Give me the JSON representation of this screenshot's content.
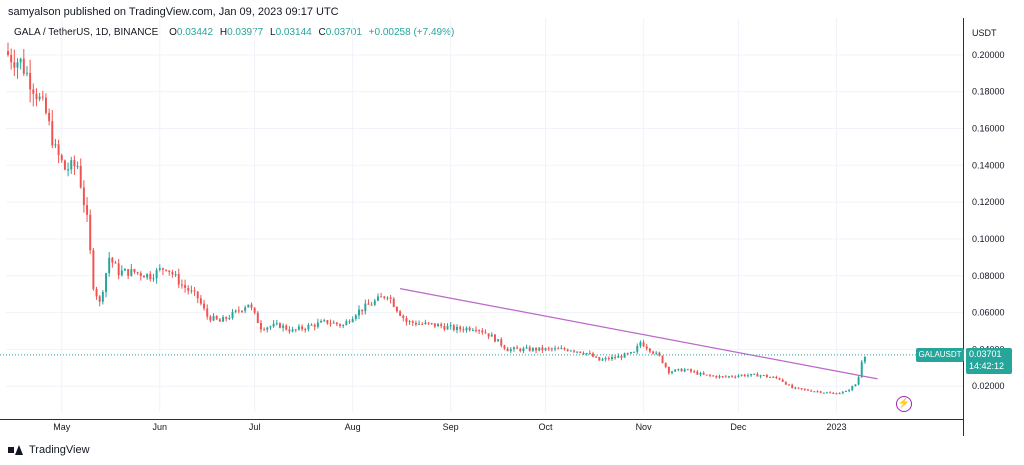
{
  "header": {
    "published": "samyalson published on TradingView.com, Jan 09, 2023 09:17 UTC"
  },
  "legend": {
    "pair": "GALA / TetherUS, 1D, BINANCE",
    "open_label": "O",
    "open": "0.03442",
    "high_label": "H",
    "high": "0.03977",
    "low_label": "L",
    "low": "0.03144",
    "close_label": "C",
    "close": "0.03701",
    "change": "+0.00258 (+7.49%)"
  },
  "badge": {
    "symbol": "GALAUSDT",
    "price": "0.03701",
    "countdown": "14:42:12"
  },
  "footer": {
    "brand": "TradingView"
  },
  "flash_icon": "lightning-icon",
  "colors": {
    "up": "#26a69a",
    "down": "#ef5350",
    "trendline": "#ba68c8",
    "grid": "#f0f3fa",
    "axis_text": "#131722"
  },
  "chart_data": {
    "type": "candlestick",
    "title": "GALA / TetherUS, 1D, BINANCE",
    "ylabel": "USDT",
    "ylim": [
      0.006,
      0.22
    ],
    "y_ticks": [
      0.02,
      0.04,
      0.06,
      0.08,
      0.1,
      0.12,
      0.14,
      0.16,
      0.18,
      0.2
    ],
    "y_tick_labels": [
      "0.02000",
      "0.04000",
      "0.06000",
      "0.08000",
      "0.10000",
      "0.12000",
      "0.14000",
      "0.16000",
      "0.18000",
      "0.20000"
    ],
    "x_range_days": [
      0,
      292
    ],
    "x_ticks": [
      {
        "label": "May",
        "day": 17
      },
      {
        "label": "Jun",
        "day": 48
      },
      {
        "label": "Jul",
        "day": 78
      },
      {
        "label": "Aug",
        "day": 109
      },
      {
        "label": "Sep",
        "day": 140
      },
      {
        "label": "Oct",
        "day": 170
      },
      {
        "label": "Nov",
        "day": 201
      },
      {
        "label": "Dec",
        "day": 231
      },
      {
        "label": "2023",
        "day": 262
      }
    ],
    "close_anchors": [
      [
        0,
        0.2
      ],
      [
        4,
        0.196
      ],
      [
        8,
        0.183
      ],
      [
        12,
        0.168
      ],
      [
        15,
        0.148
      ],
      [
        18,
        0.138
      ],
      [
        22,
        0.14
      ],
      [
        25,
        0.11
      ],
      [
        27,
        0.075
      ],
      [
        29,
        0.065
      ],
      [
        32,
        0.09
      ],
      [
        35,
        0.082
      ],
      [
        40,
        0.082
      ],
      [
        45,
        0.08
      ],
      [
        50,
        0.085
      ],
      [
        55,
        0.075
      ],
      [
        60,
        0.068
      ],
      [
        63,
        0.058
      ],
      [
        67,
        0.055
      ],
      [
        72,
        0.06
      ],
      [
        76,
        0.065
      ],
      [
        80,
        0.052
      ],
      [
        86,
        0.053
      ],
      [
        90,
        0.05
      ],
      [
        96,
        0.053
      ],
      [
        101,
        0.055
      ],
      [
        106,
        0.053
      ],
      [
        110,
        0.06
      ],
      [
        115,
        0.065
      ],
      [
        120,
        0.07
      ],
      [
        123,
        0.062
      ],
      [
        126,
        0.055
      ],
      [
        130,
        0.054
      ],
      [
        136,
        0.053
      ],
      [
        142,
        0.051
      ],
      [
        148,
        0.052
      ],
      [
        153,
        0.047
      ],
      [
        158,
        0.04
      ],
      [
        165,
        0.04
      ],
      [
        172,
        0.04
      ],
      [
        178,
        0.04
      ],
      [
        183,
        0.038
      ],
      [
        187,
        0.034
      ],
      [
        193,
        0.036
      ],
      [
        198,
        0.038
      ],
      [
        200,
        0.044
      ],
      [
        203,
        0.04
      ],
      [
        206,
        0.036
      ],
      [
        209,
        0.028
      ],
      [
        214,
        0.029
      ],
      [
        220,
        0.026
      ],
      [
        226,
        0.025
      ],
      [
        232,
        0.026
      ],
      [
        238,
        0.026
      ],
      [
        244,
        0.024
      ],
      [
        248,
        0.019
      ],
      [
        252,
        0.018
      ],
      [
        257,
        0.017
      ],
      [
        261,
        0.016
      ],
      [
        265,
        0.017
      ],
      [
        268,
        0.021
      ],
      [
        269,
        0.025
      ],
      [
        270,
        0.034
      ],
      [
        271,
        0.037
      ]
    ],
    "trendline": [
      [
        124,
        0.073
      ],
      [
        275,
        0.024
      ]
    ],
    "last_price": 0.03701
  }
}
